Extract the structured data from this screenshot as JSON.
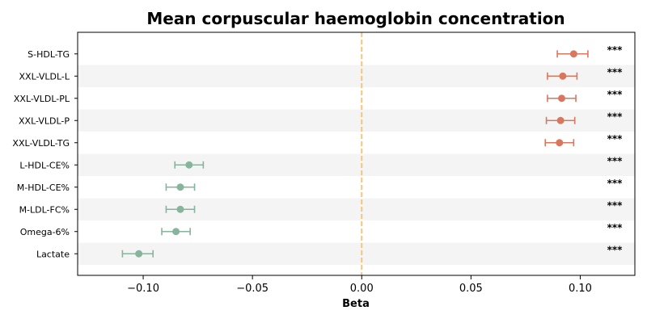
{
  "chart_data": {
    "type": "scatter",
    "title": "Mean corpuscular haemoglobin concentration",
    "xlabel": "Beta",
    "ylabel": "",
    "xlim": [
      -0.13,
      0.125
    ],
    "xticks": [
      -0.1,
      -0.05,
      0.0,
      0.05,
      0.1
    ],
    "xtick_labels": [
      "−0.10",
      "−0.05",
      "0.00",
      "0.05",
      "0.10"
    ],
    "reference_line": 0.0,
    "grid": false,
    "legend": "none",
    "row_banding": true,
    "categories": [
      "S-HDL-TG",
      "XXL-VLDL-L",
      "XXL-VLDL-PL",
      "XXL-VLDL-P",
      "XXL-VLDL-TG",
      "L-HDL-CE%",
      "M-HDL-CE%",
      "M-LDL-FC%",
      "Omega-6%",
      "Lactate"
    ],
    "beta": [
      0.097,
      0.092,
      0.0915,
      0.091,
      0.0905,
      -0.079,
      -0.083,
      -0.083,
      -0.085,
      -0.102
    ],
    "ci_lower": [
      0.0895,
      0.085,
      0.085,
      0.0845,
      0.084,
      -0.0855,
      -0.0895,
      -0.0895,
      -0.0915,
      -0.1095
    ],
    "ci_upper": [
      0.1035,
      0.0985,
      0.098,
      0.0975,
      0.097,
      -0.0725,
      -0.0765,
      -0.0765,
      -0.0785,
      -0.0955
    ],
    "significance": [
      "***",
      "***",
      "***",
      "***",
      "***",
      "***",
      "***",
      "***",
      "***",
      "***"
    ]
  },
  "colors": {
    "positive": "#d9775e",
    "negative": "#86b49c",
    "reference_line": "#f5c578",
    "band": "#f4f4f4",
    "axis": "#000000"
  }
}
